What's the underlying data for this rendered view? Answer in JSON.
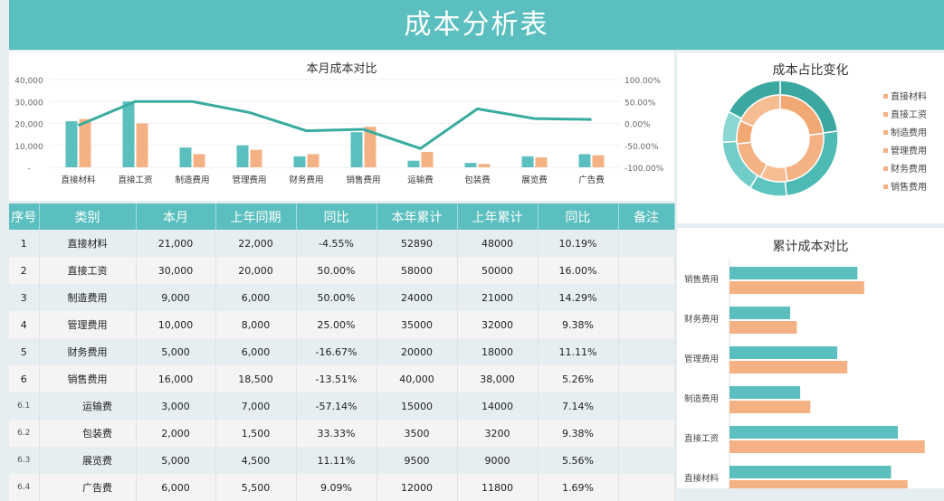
{
  "title": "成本分析表",
  "colors": {
    "teal": "#5bbfbf",
    "orange": "#f4b183",
    "line": "#3aab9f"
  },
  "chart_data": [
    {
      "type": "bar",
      "title": "本月成本对比",
      "categories": [
        "直接材料",
        "直接工资",
        "制造费用",
        "管理费用",
        "财务费用",
        "销售费用",
        "运输费",
        "包装费",
        "展览费",
        "广告费"
      ],
      "series": [
        {
          "name": "本月",
          "values": [
            21000,
            30000,
            9000,
            10000,
            5000,
            16000,
            3000,
            2000,
            5000,
            6000
          ]
        },
        {
          "name": "上年同期",
          "values": [
            22000,
            20000,
            6000,
            8000,
            6000,
            18500,
            7000,
            1500,
            4500,
            5500
          ]
        },
        {
          "name": "同比",
          "axis": "right",
          "values": [
            -4.55,
            50,
            50,
            25,
            -16.67,
            -13.51,
            -57.14,
            33.33,
            11.11,
            9.09
          ]
        }
      ],
      "ylim": [
        0,
        40000
      ],
      "yticks": [
        "-",
        "10,000",
        "20,000",
        "30,000",
        "40,000"
      ],
      "y2lim": [
        -100,
        100
      ],
      "y2ticks": [
        "-100.00%",
        "-50.00%",
        "0.00%",
        "50.00%",
        "100.00%"
      ]
    },
    {
      "type": "pie",
      "title": "成本占比变化",
      "categories": [
        "直接材料",
        "直接工资",
        "制造费用",
        "管理费用",
        "财务费用",
        "销售费用"
      ],
      "series": [
        {
          "name": "本年累计",
          "ring": "outer",
          "values": [
            52890,
            58000,
            24000,
            35000,
            20000,
            40000
          ]
        },
        {
          "name": "上年累计",
          "ring": "inner",
          "values": [
            48000,
            50000,
            21000,
            32000,
            18000,
            38000
          ]
        }
      ]
    },
    {
      "type": "bar",
      "orientation": "horizontal",
      "title": "累计成本对比",
      "categories": [
        "直接材料",
        "直接工资",
        "制造费用",
        "管理费用",
        "财务费用",
        "销售费用"
      ],
      "series": [
        {
          "name": "上年累计",
          "values": [
            48000,
            50000,
            21000,
            32000,
            18000,
            38000
          ]
        },
        {
          "name": "本年累计",
          "values": [
            52890,
            58000,
            24000,
            35000,
            20000,
            40000
          ]
        }
      ]
    }
  ],
  "table": {
    "headers": [
      "序号",
      "类别",
      "本月",
      "上年同期",
      "同比",
      "本年累计",
      "上年累计",
      "同比",
      "备注"
    ],
    "rows": [
      [
        "1",
        "直接材料",
        "21,000",
        "22,000",
        "-4.55%",
        "52890",
        "48000",
        "10.19%",
        ""
      ],
      [
        "2",
        "直接工资",
        "30,000",
        "20,000",
        "50.00%",
        "58000",
        "50000",
        "16.00%",
        ""
      ],
      [
        "3",
        "制造费用",
        "9,000",
        "6,000",
        "50.00%",
        "24000",
        "21000",
        "14.29%",
        ""
      ],
      [
        "4",
        "管理费用",
        "10,000",
        "8,000",
        "25.00%",
        "35000",
        "32000",
        "9.38%",
        ""
      ],
      [
        "5",
        "财务费用",
        "5,000",
        "6,000",
        "-16.67%",
        "20000",
        "18000",
        "11.11%",
        ""
      ],
      [
        "6",
        "销售费用",
        "16,000",
        "18,500",
        "-13.51%",
        "40,000",
        "38,000",
        "5.26%",
        ""
      ],
      [
        "6.1",
        "运输费",
        "3,000",
        "7,000",
        "-57.14%",
        "15000",
        "14000",
        "7.14%",
        ""
      ],
      [
        "6.2",
        "包装费",
        "2,000",
        "1,500",
        "33.33%",
        "3500",
        "3200",
        "9.38%",
        ""
      ],
      [
        "6.3",
        "展览费",
        "5,000",
        "4,500",
        "11.11%",
        "9500",
        "9000",
        "5.56%",
        ""
      ],
      [
        "6.4",
        "广告费",
        "6,000",
        "5,500",
        "9.09%",
        "12000",
        "11800",
        "1.69%",
        ""
      ]
    ]
  }
}
